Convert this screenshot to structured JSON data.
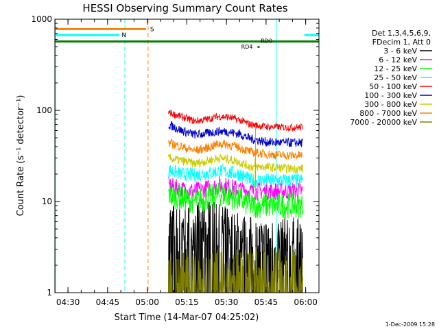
{
  "chart_data": {
    "type": "line",
    "title": "HESSI Observing Summary Count Rates",
    "xlabel": "Start Time (14-Mar-07 04:25:02)",
    "ylabel": "Count Rate (s⁻¹ detector⁻¹)",
    "yscale": "log",
    "ylim": [
      1,
      1000
    ],
    "xlim": [
      0,
      100
    ],
    "y_ticks": [
      "1",
      "10",
      "100",
      "1000"
    ],
    "x_ticks": [
      {
        "label": "04:30",
        "x": 4.97
      },
      {
        "label": "04:45",
        "x": 19.97
      },
      {
        "label": "05:00",
        "x": 34.97
      },
      {
        "label": "05:15",
        "x": 49.97
      },
      {
        "label": "05:30",
        "x": 64.97
      },
      {
        "label": "05:45",
        "x": 79.97
      },
      {
        "label": "06:00",
        "x": 94.97
      }
    ],
    "legend": {
      "header": [
        "Det 1,3,4,5,6,9,",
        "FDecim 1, Att 0"
      ],
      "position": "right"
    },
    "series": [
      {
        "name": "3 - 6 keV",
        "color": "#000000",
        "points": [
          [
            43,
            5.5
          ],
          [
            47,
            5
          ],
          [
            52,
            5.3
          ],
          [
            57,
            5.8
          ],
          [
            62,
            5
          ],
          [
            67,
            4.5
          ],
          [
            72,
            3.8
          ],
          [
            77,
            3.6
          ],
          [
            82,
            3.6
          ],
          [
            88,
            3.6
          ],
          [
            94,
            3.7
          ]
        ],
        "noise": 0.55,
        "dropout": true
      },
      {
        "name": "6 - 12 keV",
        "color": "#ff00ff",
        "points": [
          [
            43,
            15
          ],
          [
            48,
            13.5
          ],
          [
            53,
            13
          ],
          [
            58,
            14
          ],
          [
            63,
            15
          ],
          [
            66,
            14.5
          ],
          [
            70,
            13.5
          ],
          [
            74,
            13
          ],
          [
            80,
            13
          ],
          [
            88,
            13
          ],
          [
            94,
            13
          ]
        ],
        "noise": 0.1
      },
      {
        "name": "12 - 25 keV",
        "color": "#00ff00",
        "points": [
          [
            43,
            12
          ],
          [
            48,
            10.8
          ],
          [
            53,
            10
          ],
          [
            58,
            11
          ],
          [
            63,
            12
          ],
          [
            66,
            11.5
          ],
          [
            70,
            10.5
          ],
          [
            74,
            9
          ],
          [
            80,
            9
          ],
          [
            88,
            9
          ],
          [
            94,
            9
          ]
        ],
        "noise": 0.14
      },
      {
        "name": "25 - 50 keV",
        "color": "#00ffff",
        "points": [
          [
            43,
            22
          ],
          [
            48,
            20
          ],
          [
            53,
            19.5
          ],
          [
            58,
            20.5
          ],
          [
            63,
            21.5
          ],
          [
            66,
            21
          ],
          [
            70,
            20
          ],
          [
            74,
            17
          ],
          [
            80,
            17
          ],
          [
            88,
            17
          ],
          [
            94,
            17
          ]
        ],
        "noise": 0.08
      },
      {
        "name": "50 - 100 keV",
        "color": "#ff0000",
        "points": [
          [
            43,
            95
          ],
          [
            48,
            85
          ],
          [
            53,
            76
          ],
          [
            58,
            80
          ],
          [
            62,
            86
          ],
          [
            66,
            84
          ],
          [
            70,
            78
          ],
          [
            74,
            70
          ],
          [
            80,
            66
          ],
          [
            88,
            65
          ],
          [
            94,
            65
          ]
        ],
        "noise": 0.04
      },
      {
        "name": "100 - 300 keV",
        "color": "#0000cc",
        "points": [
          [
            43,
            70
          ],
          [
            48,
            60
          ],
          [
            53,
            54
          ],
          [
            58,
            56
          ],
          [
            62,
            59
          ],
          [
            66,
            58
          ],
          [
            70,
            55
          ],
          [
            74,
            49
          ],
          [
            80,
            45
          ],
          [
            88,
            44
          ],
          [
            94,
            44
          ]
        ],
        "noise": 0.05
      },
      {
        "name": "300 - 800 keV",
        "color": "#cccc00",
        "points": [
          [
            43,
            30
          ],
          [
            48,
            28
          ],
          [
            53,
            26
          ],
          [
            58,
            28
          ],
          [
            62,
            30
          ],
          [
            66,
            29
          ],
          [
            70,
            27
          ],
          [
            74,
            24
          ],
          [
            80,
            24
          ],
          [
            88,
            23
          ],
          [
            94,
            23
          ]
        ],
        "noise": 0.05
      },
      {
        "name": "800 - 7000 keV",
        "color": "#ff8000",
        "points": [
          [
            43,
            44
          ],
          [
            48,
            40
          ],
          [
            53,
            36
          ],
          [
            58,
            39
          ],
          [
            62,
            43
          ],
          [
            66,
            42
          ],
          [
            70,
            39
          ],
          [
            74,
            35
          ],
          [
            80,
            33
          ],
          [
            88,
            32
          ],
          [
            94,
            32
          ]
        ],
        "noise": 0.05
      },
      {
        "name": "7000 - 20000 keV",
        "color": "#808000",
        "points": [
          [
            43,
            1.6
          ],
          [
            94,
            1.6
          ]
        ],
        "noise": 0.6,
        "dropout": true
      }
    ],
    "annotations": {
      "S": {
        "label": "S",
        "color": "#ff8000",
        "y": 780,
        "x": [
          0,
          34.5
        ]
      },
      "N": {
        "label": "N",
        "color": "#00ffff",
        "segments": [
          [
            0,
            24.5
          ],
          [
            94.5,
            100
          ]
        ],
        "y": 670
      },
      "RD0": {
        "label": "RD0",
        "color": "#008000",
        "y": 570,
        "x": [
          0,
          100
        ]
      },
      "RD4": {
        "label": "RD4",
        "color": "#008000",
        "x": 77,
        "y": 500
      }
    },
    "vertical_lines": [
      {
        "x": 26.5,
        "color": "#00ffff",
        "style": "dashed"
      },
      {
        "x": 35.3,
        "color": "#ff8000",
        "style": "dashed"
      },
      {
        "x": 83.8,
        "color": "#00ffff",
        "style": "solid"
      },
      {
        "x": 100,
        "color": "#00ffff",
        "style": "dashed"
      }
    ],
    "grid": false
  },
  "footer": {
    "date": "1-Dec-2009 15:28"
  }
}
